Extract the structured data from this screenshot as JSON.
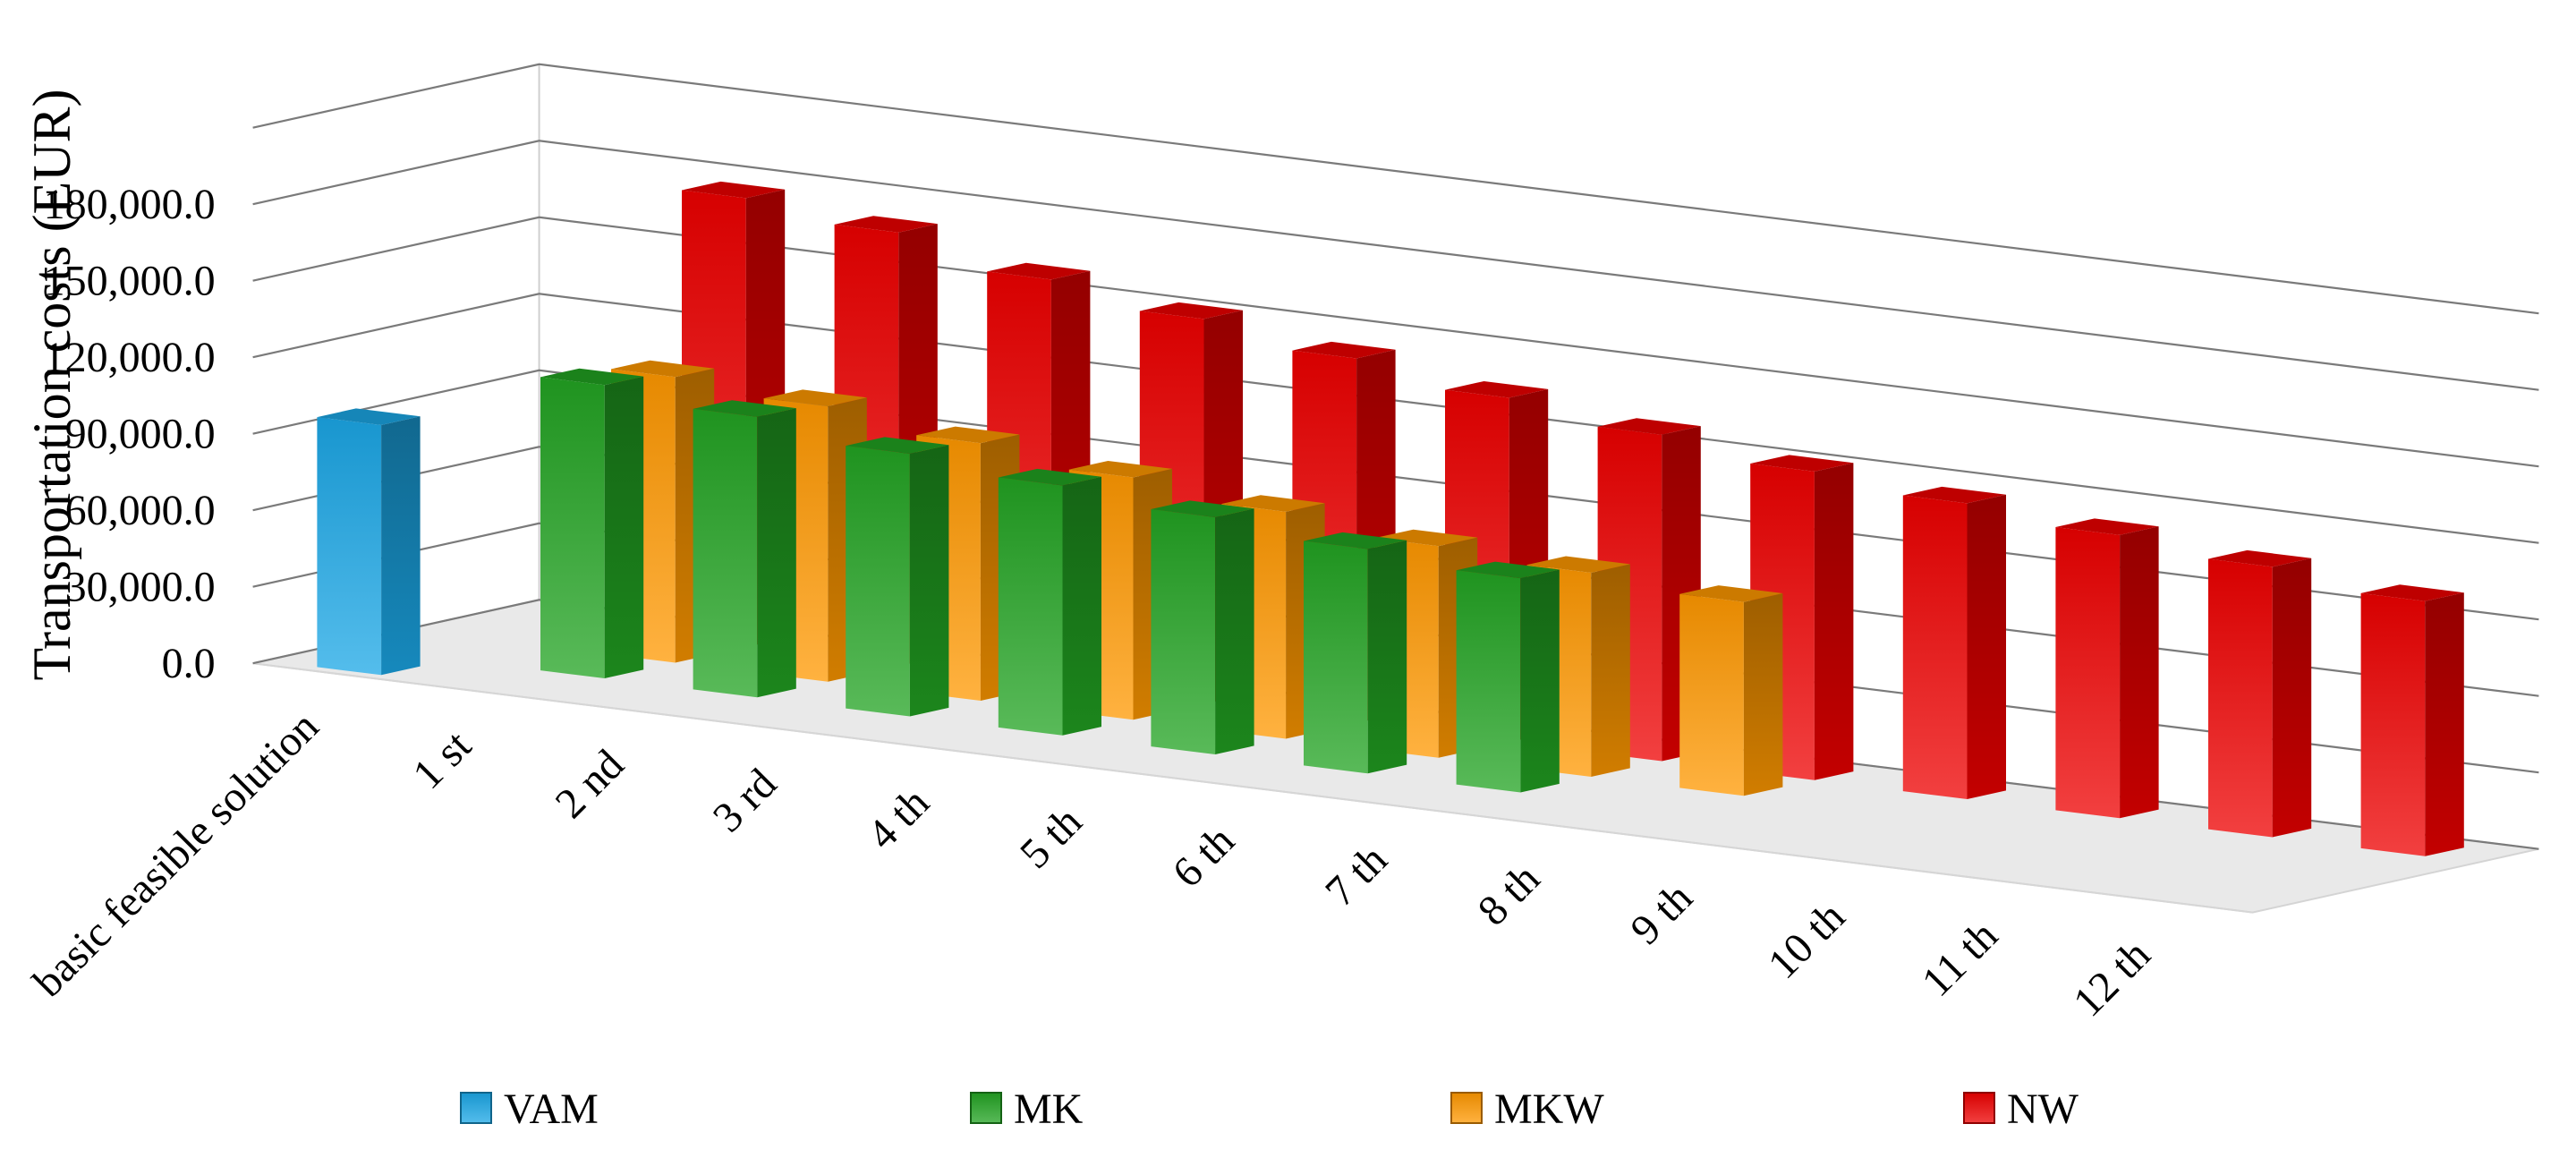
{
  "chart_data": {
    "type": "bar",
    "style": "3d-clustered-depth",
    "ylabel": "Transportation costs (EUR)",
    "ylim": [
      0,
      180000
    ],
    "yticks": [
      0,
      30000,
      60000,
      90000,
      120000,
      150000,
      180000
    ],
    "ytick_labels": [
      "0.0",
      "30,000.0",
      "60,000.0",
      "90,000.0",
      "120,000.0",
      "150,000.0",
      "180,000.0"
    ],
    "categories": [
      "basic feasible solution",
      "1 st",
      "2 nd",
      "3 rd",
      "4 th",
      "5 th",
      "6 th",
      "7 th",
      "8 th",
      "9 th",
      "10 th",
      "11 th",
      "12 th"
    ],
    "grid": true,
    "legend_position": "bottom",
    "series": [
      {
        "name": "VAM",
        "color": "#1ba7e6",
        "values": [
          98000,
          null,
          null,
          null,
          null,
          null,
          null,
          null,
          null,
          null,
          null,
          null,
          null
        ]
      },
      {
        "name": "MK",
        "color": "#22a322",
        "values": [
          null,
          115000,
          110000,
          103000,
          98000,
          93000,
          88000,
          84000,
          null,
          null,
          null,
          null,
          null
        ]
      },
      {
        "name": "MKW",
        "color": "#ff9800",
        "values": [
          null,
          112000,
          108000,
          101000,
          95000,
          89000,
          83000,
          80000,
          76000,
          null,
          null,
          null,
          null
        ]
      },
      {
        "name": "NW",
        "color": "#ee0000",
        "values": [
          null,
          176000,
          170000,
          159000,
          151000,
          143000,
          135000,
          128000,
          121000,
          116000,
          111000,
          106000,
          100000
        ]
      }
    ]
  }
}
